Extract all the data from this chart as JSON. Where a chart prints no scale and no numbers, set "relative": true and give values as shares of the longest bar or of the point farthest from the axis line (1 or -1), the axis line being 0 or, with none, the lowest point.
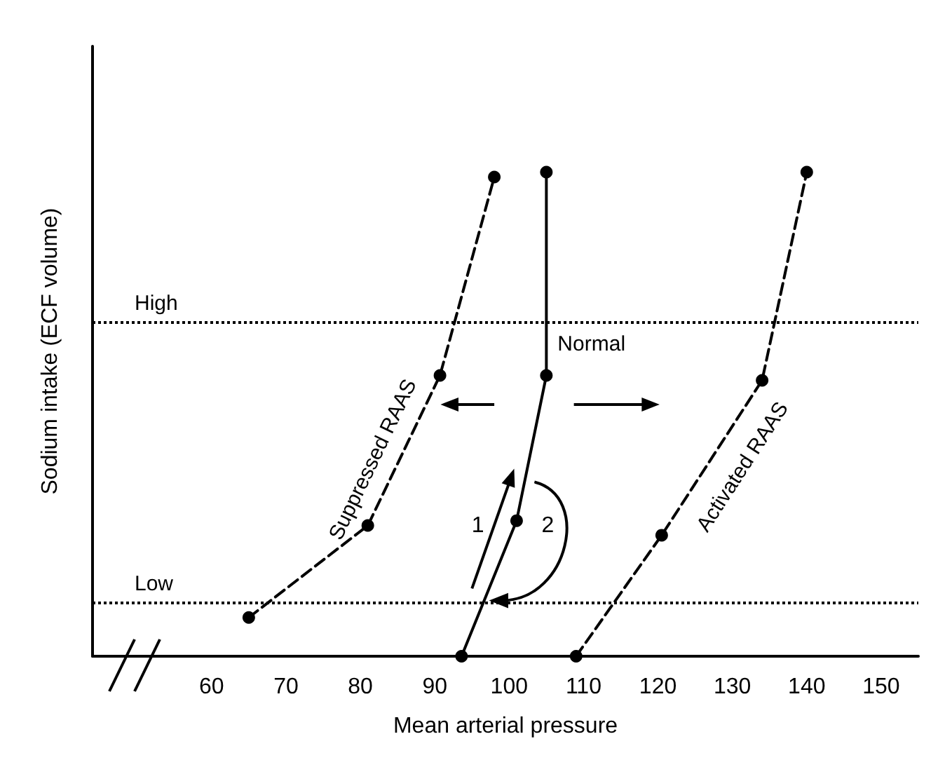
{
  "chart_data": {
    "type": "line",
    "xlabel": "Mean arterial pressure",
    "ylabel": "Sodium intake (ECF volume)",
    "relative": true,
    "xlim": [
      44,
      155
    ],
    "xticks": [
      60,
      70,
      80,
      90,
      100,
      110,
      120,
      130,
      140,
      150
    ],
    "series": [
      {
        "name": "Suppressed RAAS",
        "color": "#000000",
        "line_style": "dashed",
        "x": [
          65,
          81,
          90.7,
          98
        ],
        "values": [
          0.08,
          0.27,
          0.58,
          0.99
        ]
      },
      {
        "name": "Normal",
        "color": "#000000",
        "line_style": "solid",
        "x": [
          93.6,
          101,
          105,
          105
        ],
        "values": [
          0,
          0.28,
          0.58,
          1
        ]
      },
      {
        "name": "Activated RAAS",
        "color": "#000000",
        "line_style": "dashed",
        "x": [
          109,
          120.5,
          134,
          140
        ],
        "values": [
          0,
          0.25,
          0.57,
          1
        ]
      }
    ],
    "marker": "circle",
    "grid": false,
    "legend": false,
    "tick_labels": "x",
    "ref_lines": [
      {
        "axis": "y",
        "value": 0.69,
        "label": "High",
        "line_style": "dotted",
        "color": "#000000"
      },
      {
        "axis": "y",
        "value": 0.11,
        "label": "Low",
        "line_style": "dotted",
        "color": "#000000"
      }
    ],
    "annotations": [
      "1",
      "2"
    ]
  }
}
